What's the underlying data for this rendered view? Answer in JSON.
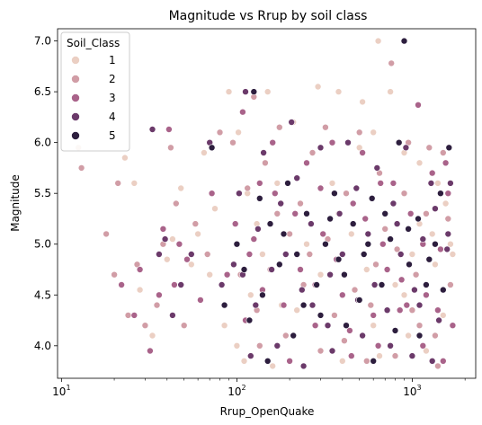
{
  "chart_data": {
    "type": "scatter",
    "title": "Magnitude vs Rrup by soil class",
    "xlabel": "Rrup_OpenQuake",
    "ylabel": "Magnitude",
    "x_scale": "log",
    "xlim": [
      9.5,
      2300
    ],
    "ylim": [
      3.68,
      7.12
    ],
    "x_ticks": [
      {
        "value": 10,
        "base": "10",
        "exp": "1"
      },
      {
        "value": 100,
        "base": "10",
        "exp": "2"
      },
      {
        "value": 1000,
        "base": "10",
        "exp": "3"
      }
    ],
    "y_ticks": [
      4.0,
      4.5,
      5.0,
      5.5,
      6.0,
      6.5,
      7.0
    ],
    "y_tick_labels": [
      "4.0",
      "4.5",
      "5.0",
      "5.5",
      "6.0",
      "6.5",
      "7.0"
    ],
    "grid": false,
    "legend": {
      "title": "Soil_Class",
      "position": "top-left",
      "entries": [
        {
          "label": "1",
          "color": "#ebcfc3"
        },
        {
          "label": "2",
          "color": "#d19da6"
        },
        {
          "label": "3",
          "color": "#a9638a"
        },
        {
          "label": "4",
          "color": "#6b3a6a"
        },
        {
          "label": "5",
          "color": "#2d1e3e"
        }
      ]
    },
    "series": [
      {
        "name": "1",
        "color": "#ebcfc3",
        "points": [
          [
            12.5,
            5.95
          ],
          [
            23,
            5.85
          ],
          [
            26,
            5.6
          ],
          [
            28,
            4.55
          ],
          [
            33,
            4.1
          ],
          [
            40,
            4.85
          ],
          [
            43,
            5.05
          ],
          [
            48,
            5.55
          ],
          [
            55,
            4.8
          ],
          [
            65,
            5.9
          ],
          [
            75,
            5.35
          ],
          [
            90,
            6.5
          ],
          [
            102,
            6.1
          ],
          [
            115,
            5.5
          ],
          [
            150,
            6.5
          ],
          [
            210,
            6.2
          ],
          [
            290,
            6.55
          ],
          [
            380,
            6.5
          ],
          [
            520,
            6.4
          ],
          [
            640,
            7.0
          ],
          [
            600,
            6.1
          ],
          [
            750,
            6.5
          ],
          [
            900,
            5.9
          ],
          [
            1100,
            5.8
          ],
          [
            1400,
            5.6
          ],
          [
            1650,
            5.0
          ],
          [
            1700,
            4.9
          ],
          [
            1500,
            4.3
          ],
          [
            1200,
            3.95
          ],
          [
            950,
            4.1
          ],
          [
            800,
            4.6
          ],
          [
            600,
            4.2
          ],
          [
            450,
            5.1
          ],
          [
            380,
            5.3
          ],
          [
            300,
            4.7
          ],
          [
            220,
            4.35
          ],
          [
            170,
            5.6
          ],
          [
            140,
            4.9
          ],
          [
            120,
            4.5
          ],
          [
            100,
            4.0
          ],
          [
            85,
            4.2
          ],
          [
            70,
            4.7
          ],
          [
            60,
            5.1
          ],
          [
            1300,
            5.1
          ],
          [
            1000,
            4.9
          ],
          [
            700,
            5.3
          ],
          [
            500,
            5.95
          ],
          [
            350,
            5.6
          ],
          [
            250,
            5.0
          ],
          [
            180,
            4.4
          ],
          [
            130,
            5.2
          ],
          [
            110,
            3.85
          ],
          [
            160,
            3.8
          ],
          [
            400,
            3.85
          ],
          [
            650,
            3.9
          ],
          [
            900,
            4.5
          ],
          [
            1100,
            5.2
          ],
          [
            1350,
            4.8
          ],
          [
            1550,
            5.4
          ],
          [
            550,
            4.75
          ]
        ]
      },
      {
        "name": "2",
        "color": "#d19da6",
        "points": [
          [
            13,
            5.75
          ],
          [
            18,
            5.1
          ],
          [
            20,
            4.7
          ],
          [
            21,
            5.6
          ],
          [
            22,
            4.6
          ],
          [
            24,
            4.3
          ],
          [
            27,
            4.8
          ],
          [
            30,
            4.2
          ],
          [
            35,
            4.4
          ],
          [
            38,
            5.0
          ],
          [
            42,
            5.95
          ],
          [
            45,
            5.4
          ],
          [
            50,
            4.2
          ],
          [
            58,
            5.2
          ],
          [
            68,
            4.9
          ],
          [
            80,
            6.1
          ],
          [
            95,
            6.0
          ],
          [
            105,
            4.7
          ],
          [
            125,
            6.45
          ],
          [
            145,
            5.8
          ],
          [
            175,
            6.15
          ],
          [
            200,
            5.1
          ],
          [
            240,
            4.6
          ],
          [
            270,
            5.9
          ],
          [
            320,
            6.15
          ],
          [
            360,
            4.3
          ],
          [
            420,
            5.5
          ],
          [
            500,
            6.1
          ],
          [
            580,
            4.4
          ],
          [
            650,
            5.7
          ],
          [
            760,
            6.78
          ],
          [
            820,
            4.95
          ],
          [
            950,
            6.0
          ],
          [
            1050,
            4.7
          ],
          [
            1200,
            5.3
          ],
          [
            1350,
            4.1
          ],
          [
            1500,
            5.9
          ],
          [
            1650,
            4.6
          ],
          [
            1400,
            3.8
          ],
          [
            1100,
            4.2
          ],
          [
            800,
            3.9
          ],
          [
            550,
            3.85
          ],
          [
            300,
            3.95
          ],
          [
            190,
            4.1
          ],
          [
            130,
            4.35
          ],
          [
            115,
            5.55
          ],
          [
            155,
            4.75
          ],
          [
            230,
            5.4
          ],
          [
            330,
            5.05
          ],
          [
            470,
            4.55
          ],
          [
            700,
            5.15
          ],
          [
            900,
            5.5
          ],
          [
            1250,
            5.95
          ],
          [
            1600,
            5.25
          ],
          [
            1000,
            4.35
          ],
          [
            620,
            4.8
          ],
          [
            410,
            4.05
          ],
          [
            260,
            4.9
          ],
          [
            170,
            5.3
          ],
          [
            135,
            4.0
          ]
        ]
      },
      {
        "name": "3",
        "color": "#a9638a",
        "points": [
          [
            22,
            4.6
          ],
          [
            26,
            4.3
          ],
          [
            28,
            4.75
          ],
          [
            32,
            3.95
          ],
          [
            36,
            4.5
          ],
          [
            38,
            5.15
          ],
          [
            41,
            6.13
          ],
          [
            44,
            4.6
          ],
          [
            47,
            5.0
          ],
          [
            52,
            4.85
          ],
          [
            62,
            4.45
          ],
          [
            72,
            5.5
          ],
          [
            88,
            4.7
          ],
          [
            98,
            5.2
          ],
          [
            108,
            6.3
          ],
          [
            118,
            4.9
          ],
          [
            135,
            5.6
          ],
          [
            160,
            6.0
          ],
          [
            185,
            4.4
          ],
          [
            215,
            5.3
          ],
          [
            250,
            5.8
          ],
          [
            280,
            4.6
          ],
          [
            310,
            5.1
          ],
          [
            350,
            6.0
          ],
          [
            400,
            4.5
          ],
          [
            460,
            5.4
          ],
          [
            520,
            5.9
          ],
          [
            600,
            4.3
          ],
          [
            680,
            5.0
          ],
          [
            780,
            5.6
          ],
          [
            870,
            4.65
          ],
          [
            980,
            5.3
          ],
          [
            1080,
            6.37
          ],
          [
            1200,
            4.5
          ],
          [
            1300,
            5.7
          ],
          [
            1450,
            4.95
          ],
          [
            1600,
            5.5
          ],
          [
            1700,
            4.2
          ],
          [
            1500,
            3.85
          ],
          [
            1150,
            4.0
          ],
          [
            850,
            4.35
          ],
          [
            640,
            4.0
          ],
          [
            450,
            3.9
          ],
          [
            280,
            4.2
          ],
          [
            200,
            3.85
          ],
          [
            140,
            4.55
          ],
          [
            112,
            4.25
          ],
          [
            125,
            5.05
          ],
          [
            165,
            5.5
          ],
          [
            230,
            4.75
          ],
          [
            370,
            4.85
          ],
          [
            540,
            5.25
          ],
          [
            720,
            4.75
          ],
          [
            930,
            4.4
          ],
          [
            1150,
            5.0
          ],
          [
            1400,
            4.35
          ],
          [
            1550,
            5.8
          ],
          [
            300,
            5.55
          ],
          [
            440,
            4.15
          ],
          [
            660,
            5.6
          ]
        ]
      },
      {
        "name": "4",
        "color": "#6b3a6a",
        "points": [
          [
            33,
            6.13
          ],
          [
            36,
            4.9
          ],
          [
            39,
            5.05
          ],
          [
            43,
            4.3
          ],
          [
            48,
            4.6
          ],
          [
            55,
            4.9
          ],
          [
            70,
            6.0
          ],
          [
            82,
            4.6
          ],
          [
            96,
            4.8
          ],
          [
            103,
            5.5
          ],
          [
            112,
            6.5
          ],
          [
            128,
            4.4
          ],
          [
            142,
            5.9
          ],
          [
            158,
            4.75
          ],
          [
            178,
            5.4
          ],
          [
            205,
            6.2
          ],
          [
            235,
            4.55
          ],
          [
            265,
            5.2
          ],
          [
            300,
            5.95
          ],
          [
            340,
            4.7
          ],
          [
            385,
            5.3
          ],
          [
            430,
            6.0
          ],
          [
            490,
            4.45
          ],
          [
            560,
            5.1
          ],
          [
            630,
            5.75
          ],
          [
            720,
            4.35
          ],
          [
            820,
            5.2
          ],
          [
            920,
            5.95
          ],
          [
            1030,
            4.55
          ],
          [
            1150,
            5.05
          ],
          [
            1280,
            5.6
          ],
          [
            1420,
            4.25
          ],
          [
            1580,
            4.95
          ],
          [
            1650,
            5.6
          ],
          [
            1300,
            3.85
          ],
          [
            1000,
            3.9
          ],
          [
            750,
            4.0
          ],
          [
            520,
            4.1
          ],
          [
            350,
            3.95
          ],
          [
            240,
            3.8
          ],
          [
            170,
            4.0
          ],
          [
            120,
            3.9
          ],
          [
            108,
            4.7
          ],
          [
            132,
            5.15
          ],
          [
            190,
            4.9
          ],
          [
            270,
            4.4
          ],
          [
            400,
            4.9
          ],
          [
            610,
            4.6
          ],
          [
            860,
            4.9
          ],
          [
            1100,
            4.4
          ],
          [
            1350,
            5.35
          ],
          [
            1600,
            5.1
          ],
          [
            220,
            5.65
          ],
          [
            480,
            5.55
          ],
          [
            780,
            5.4
          ],
          [
            330,
            4.2
          ]
        ]
      },
      {
        "name": "5",
        "color": "#2d1e3e",
        "points": [
          [
            72,
            5.95
          ],
          [
            85,
            4.4
          ],
          [
            100,
            5.0
          ],
          [
            110,
            4.75
          ],
          [
            125,
            6.5
          ],
          [
            140,
            4.5
          ],
          [
            155,
            5.2
          ],
          [
            175,
            4.8
          ],
          [
            195,
            5.6
          ],
          [
            220,
            4.9
          ],
          [
            250,
            5.3
          ],
          [
            285,
            4.6
          ],
          [
            320,
            5.0
          ],
          [
            360,
            5.5
          ],
          [
            410,
            4.7
          ],
          [
            460,
            5.2
          ],
          [
            530,
            4.9
          ],
          [
            590,
            5.45
          ],
          [
            670,
            4.6
          ],
          [
            750,
            5.05
          ],
          [
            840,
            6.0
          ],
          [
            900,
            7.0
          ],
          [
            960,
            4.8
          ],
          [
            1080,
            5.25
          ],
          [
            1200,
            4.6
          ],
          [
            1350,
            5.0
          ],
          [
            1500,
            4.55
          ],
          [
            1620,
            5.95
          ],
          [
            1100,
            4.1
          ],
          [
            800,
            4.15
          ],
          [
            600,
            3.85
          ],
          [
            420,
            4.2
          ],
          [
            300,
            4.3
          ],
          [
            210,
            4.1
          ],
          [
            150,
            3.85
          ],
          [
            118,
            4.25
          ],
          [
            135,
            5.45
          ],
          [
            185,
            5.1
          ],
          [
            240,
            4.4
          ],
          [
            340,
            5.25
          ],
          [
            500,
            4.45
          ],
          [
            700,
            5.3
          ],
          [
            950,
            5.15
          ],
          [
            1250,
            4.85
          ],
          [
            1450,
            5.5
          ],
          [
            380,
            4.85
          ],
          [
            560,
            5.0
          ]
        ]
      }
    ]
  }
}
